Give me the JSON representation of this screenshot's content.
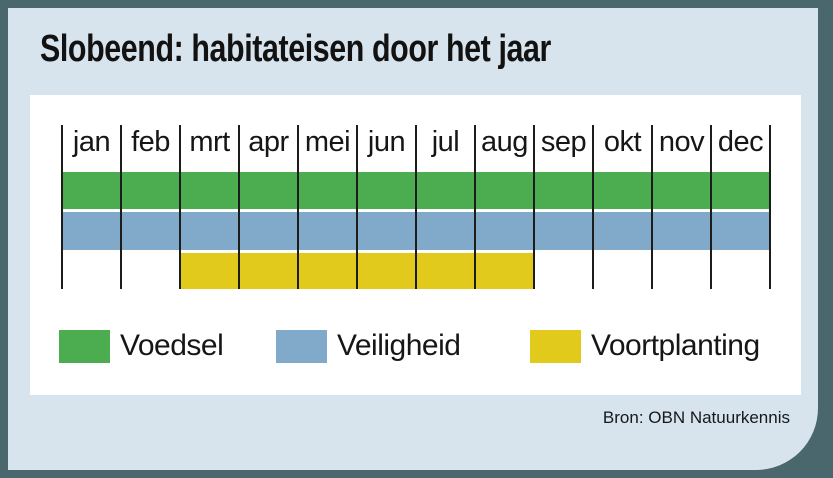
{
  "title": "Slobeend: habitateisen door het jaar",
  "source": "Bron: OBN Natuurkennis",
  "months": [
    "jan",
    "feb",
    "mrt",
    "apr",
    "mei",
    "jun",
    "jul",
    "aug",
    "sep",
    "okt",
    "nov",
    "dec"
  ],
  "legend": [
    {
      "label": "Voedsel",
      "color": "#4cad50"
    },
    {
      "label": "Veiligheid",
      "color": "#81a9ca"
    },
    {
      "label": "Voortplanting",
      "color": "#e2ca1c"
    }
  ],
  "colors": {
    "page_background": "#4a676e",
    "card_background": "#d8e4ed",
    "panel_background": "#ffffff",
    "grid_line": "#1c1c1c",
    "text": "#161616",
    "voedsel_green": "#4cad50",
    "veiligheid_blue": "#81a9ca",
    "voortplanting_yellow": "#e2ca1c"
  },
  "chart_data": {
    "type": "bar",
    "subtype": "gantt-month-timeline",
    "title": "Slobeend: habitateisen door het jaar",
    "categories": [
      "jan",
      "feb",
      "mrt",
      "apr",
      "mei",
      "jun",
      "jul",
      "aug",
      "sep",
      "okt",
      "nov",
      "dec"
    ],
    "series": [
      {
        "name": "Voedsel",
        "color": "#4cad50",
        "start_month": "jan",
        "end_month": "dec",
        "start_index": 1,
        "end_index": 12
      },
      {
        "name": "Veiligheid",
        "color": "#81a9ca",
        "start_month": "jan",
        "end_month": "dec",
        "start_index": 1,
        "end_index": 12
      },
      {
        "name": "Voortplanting",
        "color": "#e2ca1c",
        "start_month": "mrt",
        "end_month": "aug",
        "start_index": 3,
        "end_index": 8
      }
    ],
    "grid": "vertical month boundary lines, drawn over bands",
    "legend_position": "bottom",
    "source": "Bron: OBN Natuurkennis"
  }
}
